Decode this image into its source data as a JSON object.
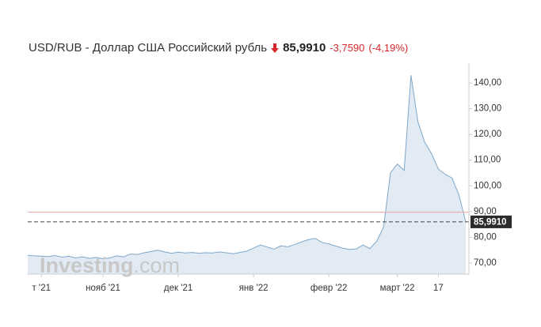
{
  "chart_data": {
    "type": "line",
    "title": "USD/RUB - Доллар США Российский рубль",
    "price": "85,9910",
    "change": "-3,7590",
    "change_pct": "(-4,19%)",
    "watermark": "Investing",
    "watermark_suffix": ".com",
    "categories": [
      null,
      null,
      "т '21",
      null,
      null,
      null,
      null,
      null,
      null,
      null,
      null,
      "нояб '21",
      null,
      null,
      null,
      null,
      null,
      null,
      null,
      null,
      null,
      null,
      "дек '21",
      null,
      null,
      null,
      null,
      null,
      null,
      null,
      null,
      null,
      null,
      "янв '22",
      null,
      null,
      null,
      null,
      null,
      null,
      null,
      null,
      null,
      null,
      "февр '22",
      null,
      null,
      null,
      null,
      null,
      null,
      null,
      null,
      null,
      "март '22",
      null,
      null,
      null,
      null,
      null,
      "17",
      null,
      null,
      null,
      null
    ],
    "series": [
      {
        "name": "USD/RUB",
        "color": "#7ea7c9",
        "values": [
          73.0,
          72.8,
          72.7,
          72.5,
          72.9,
          72.3,
          72.6,
          72.0,
          72.4,
          71.8,
          72.2,
          71.6,
          72.0,
          72.8,
          72.4,
          73.5,
          73.3,
          74.0,
          74.5,
          75.0,
          74.3,
          73.8,
          74.2,
          73.9,
          74.1,
          73.8,
          74.0,
          73.9,
          74.3,
          74.0,
          73.6,
          74.1,
          74.6,
          75.8,
          77.0,
          76.2,
          75.4,
          76.7,
          76.3,
          77.2,
          78.2,
          79.1,
          79.6,
          78.0,
          77.4,
          76.6,
          75.8,
          75.3,
          75.5,
          77.0,
          75.6,
          78.5,
          84.0,
          105.0,
          108.5,
          106.0,
          143.0,
          125.0,
          117.0,
          112.5,
          106.5,
          104.5,
          103.0,
          96.5,
          85.991
        ]
      }
    ],
    "reference_line": {
      "value": 89.75,
      "color": "#e8a0a0"
    },
    "ylim": [
      65.7,
      144.6
    ],
    "yticks": [
      {
        "value": 70,
        "label": "70,00"
      },
      {
        "value": 80,
        "label": "80,00"
      },
      {
        "value": 90,
        "label": "90,00"
      },
      {
        "value": 100,
        "label": "100,00"
      },
      {
        "value": 110,
        "label": "110,00"
      },
      {
        "value": 120,
        "label": "120,00"
      },
      {
        "value": 130,
        "label": "130,00"
      },
      {
        "value": 140,
        "label": "140,00"
      }
    ],
    "grid": false
  }
}
